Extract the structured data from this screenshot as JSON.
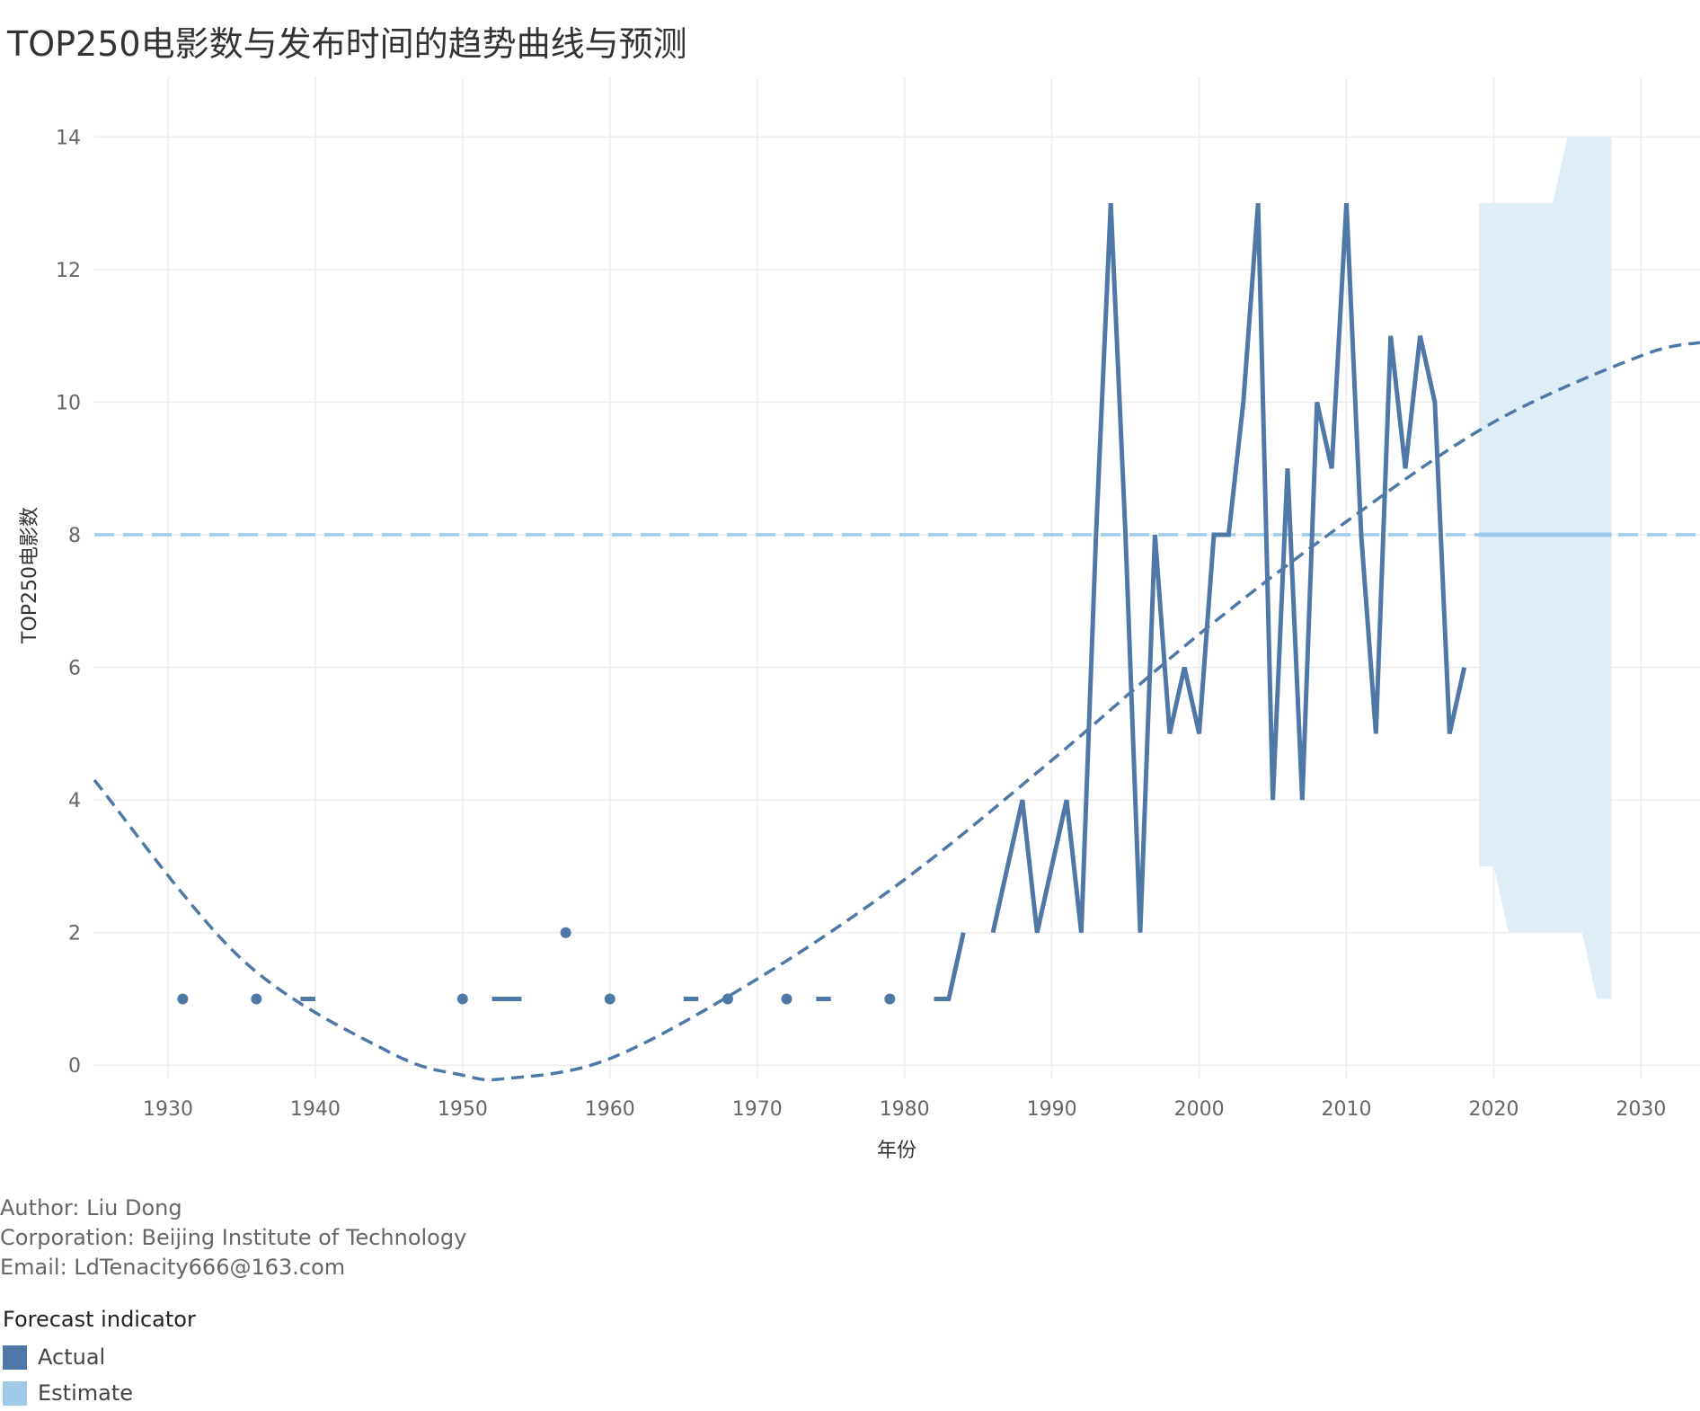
{
  "chart_data": {
    "type": "line",
    "title": "TOP250电影数与发布时间的趋势曲线与预测",
    "xlabel": "年份",
    "ylabel": "TOP250电影数",
    "xlim": [
      1925,
      1929.5
    ],
    "xlim_full": [
      1925,
      2034
    ],
    "ylim": [
      -0.2,
      14.9
    ],
    "x_ticks": [
      1930,
      1940,
      1950,
      1960,
      1970,
      1980,
      1990,
      2000,
      2010,
      2020,
      2030
    ],
    "y_ticks": [
      0,
      2,
      4,
      6,
      8,
      10,
      12,
      14
    ],
    "grid": true,
    "colors": {
      "actual": "#4e79a7",
      "estimate": "#a0cbe8",
      "band": "#dfedf7"
    },
    "series": [
      {
        "name": "Actual",
        "x": [
          1931,
          1936,
          1939,
          1940,
          1950,
          1952,
          1953,
          1954,
          1957,
          1960,
          1965,
          1966,
          1968,
          1972,
          1974,
          1975,
          1979,
          1982,
          1983,
          1984,
          1986,
          1987,
          1988,
          1989,
          1990,
          1991,
          1992,
          1993,
          1994,
          1995,
          1996,
          1997,
          1998,
          1999,
          2000,
          2001,
          2002,
          2003,
          2004,
          2005,
          2006,
          2007,
          2008,
          2009,
          2010,
          2011,
          2012,
          2013,
          2014,
          2015,
          2016,
          2017,
          2018
        ],
        "y": [
          1,
          1,
          1,
          1,
          1,
          1,
          1,
          1,
          2,
          1,
          1,
          1,
          1,
          1,
          1,
          1,
          1,
          1,
          1,
          2,
          2,
          3,
          4,
          2,
          3,
          4,
          2,
          8,
          13,
          8,
          2,
          8,
          5,
          6,
          5,
          8,
          8,
          10,
          13,
          4,
          9,
          4,
          10,
          9,
          13,
          8,
          5,
          11,
          9,
          11,
          10,
          5,
          6
        ]
      }
    ],
    "trend_line": {
      "x": [
        1925,
        1935,
        1945,
        1950,
        1953,
        1960,
        1970,
        1980,
        1990,
        2000,
        2010,
        2020,
        2030,
        2034
      ],
      "y": [
        4.3,
        1.6,
        0.2,
        -0.15,
        -0.2,
        0.1,
        1.3,
        2.8,
        4.6,
        6.5,
        8.2,
        9.7,
        10.7,
        10.9
      ]
    },
    "average_line": {
      "value": 8
    },
    "forecast_band": {
      "x": [
        2019,
        2020,
        2021,
        2022,
        2023,
        2024,
        2025,
        2026,
        2027,
        2028
      ],
      "upper": [
        13,
        13,
        13,
        13,
        13,
        13,
        14,
        14,
        14,
        14
      ],
      "lower": [
        3,
        3,
        2,
        2,
        2,
        2,
        2,
        2,
        1,
        1
      ]
    }
  },
  "credits": [
    "Author: Liu Dong",
    "Corporation: Beijing Institute of Technology",
    "Email: LdTenacity666@163.com"
  ],
  "legend": {
    "title": "Forecast indicator",
    "items": [
      {
        "label": "Actual",
        "color": "#4e79a7"
      },
      {
        "label": "Estimate",
        "color": "#a0cbe8"
      }
    ]
  }
}
